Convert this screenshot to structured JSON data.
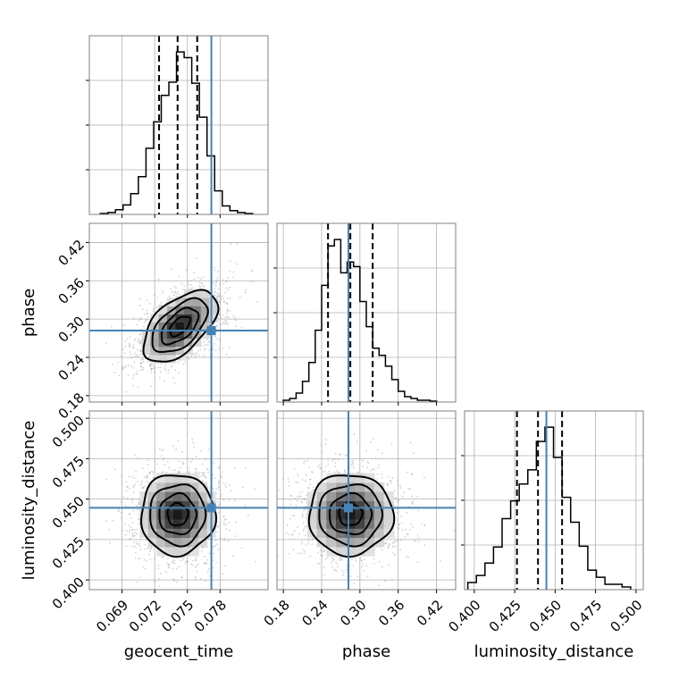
{
  "chart_data": {
    "type": "corner",
    "parameters": [
      "geocent_time",
      "phase",
      "luminosity_distance"
    ],
    "ranges": {
      "geocent_time": [
        0.066,
        0.0824
      ],
      "phase": [
        0.17,
        0.45
      ],
      "luminosity_distance": [
        0.394,
        0.5045
      ]
    },
    "ticks": {
      "geocent_time": [
        "0.069",
        "0.072",
        "0.075",
        "0.078"
      ],
      "phase": [
        "0.18",
        "0.24",
        "0.30",
        "0.36",
        "0.42"
      ],
      "luminosity_distance": [
        "0.400",
        "0.425",
        "0.450",
        "0.475",
        "0.500"
      ]
    },
    "truths": {
      "geocent_time": 0.0772,
      "phase": 0.282,
      "luminosity_distance": 0.4446
    },
    "quantiles": {
      "geocent_time": [
        0.0724,
        0.0741,
        0.0759
      ],
      "phase": [
        0.25,
        0.285,
        0.32
      ],
      "luminosity_distance": [
        0.4264,
        0.4394,
        0.4543
      ]
    },
    "histograms": {
      "geocent_time": {
        "edges": [
          0.067,
          0.0677,
          0.0684,
          0.0691,
          0.0698,
          0.0705,
          0.0712,
          0.0719,
          0.0726,
          0.0733,
          0.074,
          0.0747,
          0.0754,
          0.0761,
          0.0768,
          0.0775,
          0.0782,
          0.0789,
          0.0796,
          0.0803,
          0.081
        ],
        "counts": [
          1,
          2,
          5,
          10,
          22,
          40,
          70,
          98,
          126,
          140,
          172,
          166,
          139,
          103,
          62,
          25,
          9,
          4,
          2,
          1
        ]
      },
      "phase": {
        "edges": [
          0.18,
          0.19,
          0.2,
          0.21,
          0.22,
          0.23,
          0.24,
          0.25,
          0.26,
          0.27,
          0.28,
          0.29,
          0.3,
          0.31,
          0.32,
          0.33,
          0.34,
          0.35,
          0.36,
          0.37,
          0.38,
          0.39,
          0.4,
          0.41,
          0.42
        ],
        "counts": [
          2,
          4,
          10,
          23,
          44,
          80,
          130,
          174,
          181,
          144,
          156,
          151,
          112,
          84,
          60,
          52,
          40,
          25,
          12,
          6,
          4,
          2,
          2,
          1
        ]
      },
      "luminosity_distance": {
        "edges": [
          0.396,
          0.4013,
          0.4066,
          0.4119,
          0.4172,
          0.4225,
          0.4278,
          0.4331,
          0.4384,
          0.4437,
          0.449,
          0.4543,
          0.4596,
          0.4649,
          0.4702,
          0.4755,
          0.4808,
          0.4861,
          0.4914,
          0.4967
        ],
        "counts": [
          8,
          16,
          30,
          48,
          80,
          100,
          119,
          135,
          167,
          183,
          149,
          104,
          76,
          49,
          22,
          14,
          6,
          6,
          3
        ]
      }
    },
    "pairs": [
      {
        "x": "geocent_time",
        "y": "phase",
        "center": [
          0.0743,
          0.289
        ],
        "spread": [
          0.0017,
          0.028
        ],
        "tilt": 0.55
      },
      {
        "x": "geocent_time",
        "y": "luminosity_distance",
        "center": [
          0.0741,
          0.4405
        ],
        "spread": [
          0.0017,
          0.0125
        ],
        "tilt": 0.0
      },
      {
        "x": "phase",
        "y": "luminosity_distance",
        "center": [
          0.285,
          0.4405
        ],
        "spread": [
          0.033,
          0.0125
        ],
        "tilt": 0.0
      }
    ],
    "xlabels": {
      "geocent_time": "geocent_time",
      "phase": "phase",
      "luminosity_distance": "luminosity_distance"
    },
    "ylabels": {
      "phase": "phase",
      "luminosity_distance": "luminosity_distance"
    },
    "grid": true,
    "colors": {
      "truth": "#4682b4",
      "lines": "#000000",
      "grid": "#b0b0b0"
    }
  }
}
